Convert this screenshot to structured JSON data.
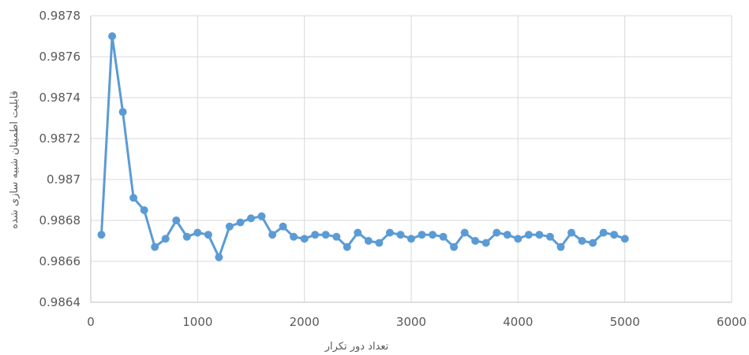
{
  "chart_data": {
    "type": "line",
    "title": "",
    "xlabel": "تعداد دور تکرار",
    "ylabel": "قابلیت اطمینان شبیه سازی شده",
    "xlim": [
      0,
      6000
    ],
    "ylim": [
      0.9864,
      0.9878
    ],
    "x_ticks": [
      0,
      1000,
      2000,
      3000,
      4000,
      5000,
      6000
    ],
    "x_tick_labels": [
      "0",
      "1000",
      "2000",
      "3000",
      "4000",
      "5000",
      "6000"
    ],
    "y_ticks": [
      0.9864,
      0.9866,
      0.9868,
      0.987,
      0.9872,
      0.9874,
      0.9876,
      0.9878
    ],
    "y_tick_labels": [
      "0.9864",
      "0.9866",
      "0.9868",
      "0.987",
      "0.9872",
      "0.9874",
      "0.9876",
      "0.9878"
    ],
    "grid": true,
    "legend": "none",
    "colors": {
      "series": "#5b9bd5",
      "grid": "#d9d9d9",
      "axis": "#bfbfbf",
      "text": "#595959"
    },
    "series": [
      {
        "x": [
          100,
          200,
          300,
          400,
          500,
          600,
          700,
          800,
          900,
          1000,
          1100,
          1200,
          1300,
          1400,
          1500,
          1600,
          1700,
          1800,
          1900,
          2000,
          2100,
          2200,
          2300,
          2400,
          2500,
          2600,
          2700,
          2800,
          2900,
          3000,
          3100,
          3200,
          3300,
          3400,
          3500,
          3600,
          3700,
          3800,
          3900,
          4000,
          4100,
          4200,
          4300,
          4400,
          4500,
          4600,
          4700,
          4800,
          4900,
          5000
        ],
        "values": [
          0.98673,
          0.9877,
          0.98733,
          0.98691,
          0.98685,
          0.98667,
          0.98671,
          0.9868,
          0.98672,
          0.98674,
          0.98673,
          0.98662,
          0.98677,
          0.98679,
          0.98681,
          0.98682,
          0.98673,
          0.98677,
          0.98672,
          0.98671,
          0.98673,
          0.98673,
          0.98672,
          0.98667,
          0.98674,
          0.9867,
          0.98669,
          0.98674,
          0.98673,
          0.98671,
          0.98673,
          0.98673,
          0.98672,
          0.98667,
          0.98674,
          0.9867,
          0.98669,
          0.98674,
          0.98673,
          0.98671,
          0.98673,
          0.98673,
          0.98672,
          0.98667,
          0.98674,
          0.9867,
          0.98669,
          0.98674,
          0.98673,
          0.98671
        ]
      }
    ]
  }
}
